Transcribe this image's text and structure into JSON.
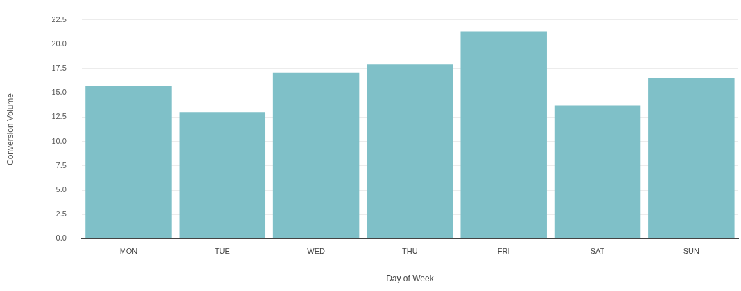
{
  "chart_data": {
    "type": "bar",
    "xlabel": "Day of Week",
    "ylabel": "Conversion Volume",
    "categories": [
      "MON",
      "TUE",
      "WED",
      "THU",
      "FRI",
      "SAT",
      "SUN"
    ],
    "values": [
      15.7,
      13.0,
      17.1,
      17.9,
      21.3,
      13.7,
      16.5
    ],
    "color": "#7fc0c8",
    "ylim": [
      0,
      22.5
    ],
    "yticks": [
      {
        "value": 0,
        "label": "0.0"
      },
      {
        "value": 2.5,
        "label": "2.5"
      },
      {
        "value": 5,
        "label": "5.0"
      },
      {
        "value": 7.5,
        "label": "7.5"
      },
      {
        "value": 10,
        "label": "10.0"
      },
      {
        "value": 12.5,
        "label": "12.5"
      },
      {
        "value": 15,
        "label": "15.0"
      },
      {
        "value": 17.5,
        "label": "17.5"
      },
      {
        "value": 20,
        "label": "20.0"
      },
      {
        "value": 22.5,
        "label": "22.5"
      }
    ],
    "grid": "y"
  }
}
